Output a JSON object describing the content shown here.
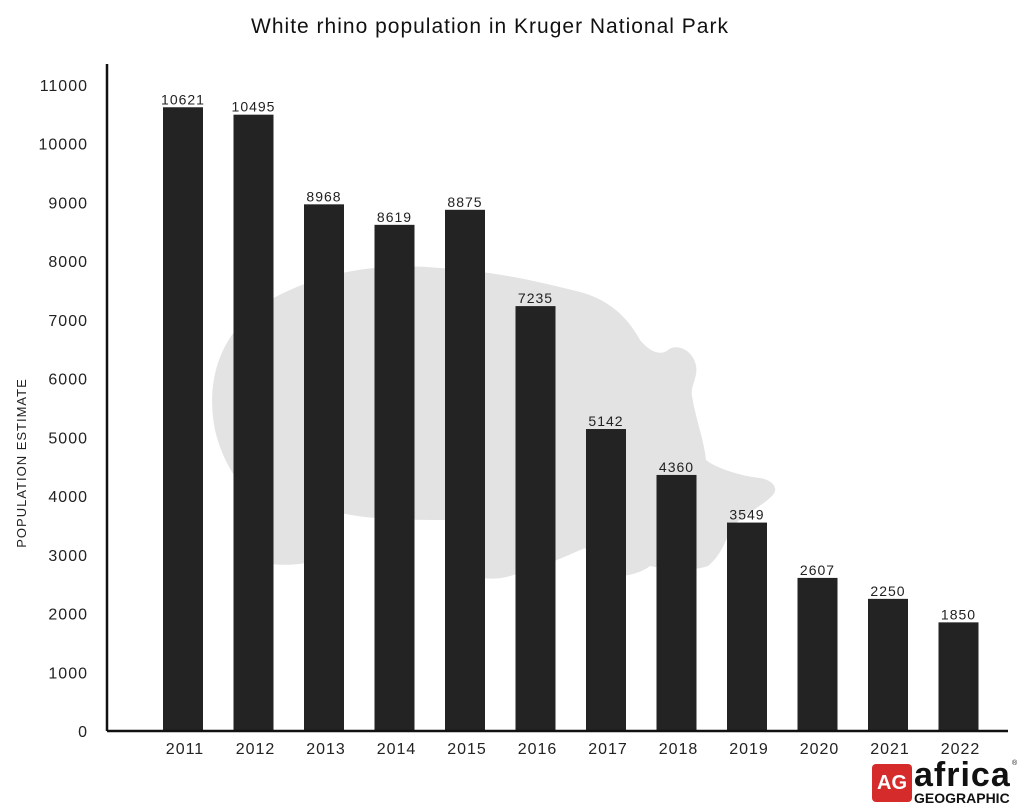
{
  "chart_data": {
    "type": "bar",
    "title": "White rhino population in Kruger National Park",
    "ylabel": "POPULATION ESTIMATE",
    "xlabel": "",
    "categories": [
      "2011",
      "2012",
      "2013",
      "2014",
      "2015",
      "2016",
      "2017",
      "2018",
      "2019",
      "2020",
      "2021",
      "2022"
    ],
    "values": [
      10621,
      10495,
      8968,
      8619,
      8875,
      7235,
      5142,
      4360,
      3549,
      2607,
      2250,
      1850
    ],
    "ylim": [
      0,
      11000
    ],
    "yticks": [
      0,
      1000,
      2000,
      3000,
      4000,
      5000,
      6000,
      7000,
      8000,
      9000,
      10000,
      11000
    ],
    "grid": false,
    "bar_color": "#232323",
    "background_image": "rhino-silhouette"
  },
  "logo": {
    "badge": "AG",
    "word": "africa",
    "sub": "GEOGRAPHIC",
    "mark": "®",
    "badge_color": "#d62b2b"
  }
}
